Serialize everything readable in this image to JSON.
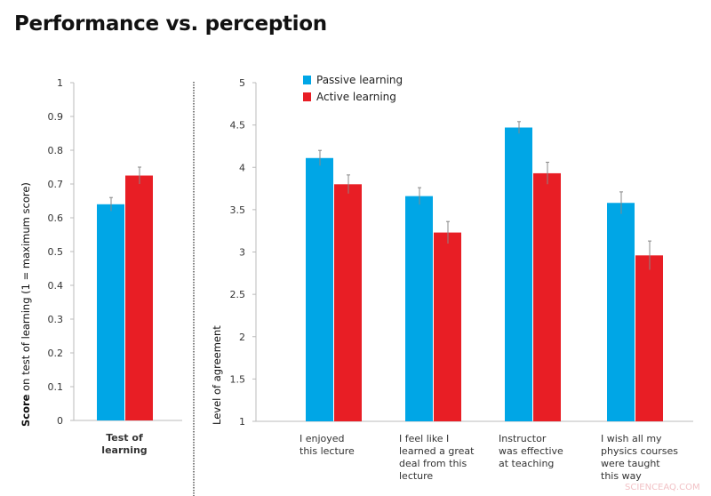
{
  "title": "Performance vs. perception",
  "watermark": "SCIENCEAQ.COM",
  "colors": {
    "passive": "#00a6e6",
    "active": "#e81e25"
  },
  "chart_data": [
    {
      "type": "bar",
      "ylabel_bold": "Score",
      "ylabel_rest": " on test of learning  (1 = maximum score)",
      "ylim": [
        0,
        1
      ],
      "yticks": [
        "0",
        "0.1",
        "0.2",
        "0.3",
        "0.4",
        "0.5",
        "0.6",
        "0.7",
        "0.8",
        "0.9",
        "1"
      ],
      "categories": [
        [
          "Test of",
          "learning"
        ]
      ],
      "series": [
        {
          "name": "Passive learning",
          "values": [
            0.64
          ],
          "errors": [
            0.02
          ]
        },
        {
          "name": "Active learning",
          "values": [
            0.725
          ],
          "errors": [
            0.025
          ]
        }
      ]
    },
    {
      "type": "bar",
      "ylabel": "Level of agreement",
      "ylim": [
        1,
        5
      ],
      "yticks": [
        "1",
        "1.5",
        "2",
        "2.5",
        "3",
        "3.5",
        "4",
        "4.5",
        "5"
      ],
      "legend": "top-left",
      "categories": [
        [
          "I enjoyed",
          "this lecture"
        ],
        [
          "I feel like I",
          "learned a great",
          "deal from this",
          "lecture"
        ],
        [
          "Instructor",
          "was effective",
          "at teaching"
        ],
        [
          "I wish all my",
          "physics courses",
          "were taught",
          "this way"
        ]
      ],
      "series": [
        {
          "name": "Passive learning",
          "values": [
            4.11,
            3.66,
            4.47,
            3.58
          ],
          "errors": [
            0.09,
            0.1,
            0.07,
            0.13
          ]
        },
        {
          "name": "Active learning",
          "values": [
            3.8,
            3.23,
            3.93,
            2.96
          ],
          "errors": [
            0.11,
            0.13,
            0.13,
            0.17
          ]
        }
      ]
    }
  ]
}
